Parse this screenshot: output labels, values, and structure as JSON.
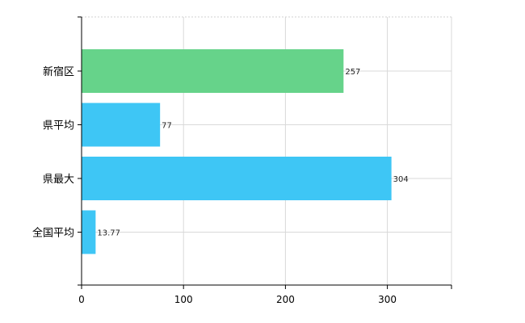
{
  "chart_data": {
    "type": "bar",
    "orientation": "horizontal",
    "categories": [
      "新宿区",
      "県平均",
      "県最大",
      "全国平均"
    ],
    "values": [
      257,
      77,
      304,
      13.77
    ],
    "data_labels": [
      "257",
      "77",
      "304",
      "13.77"
    ],
    "bar_colors": [
      "#66d38a",
      "#3ec6f5",
      "#3ec6f5",
      "#3ec6f5"
    ],
    "x_ticks": [
      0,
      100,
      200,
      300
    ],
    "x_tick_labels": [
      "0",
      "100",
      "200",
      "300"
    ],
    "xlim": [
      0,
      365
    ],
    "title": "",
    "xlabel": "",
    "ylabel": "",
    "grid": true,
    "legend": "none"
  }
}
